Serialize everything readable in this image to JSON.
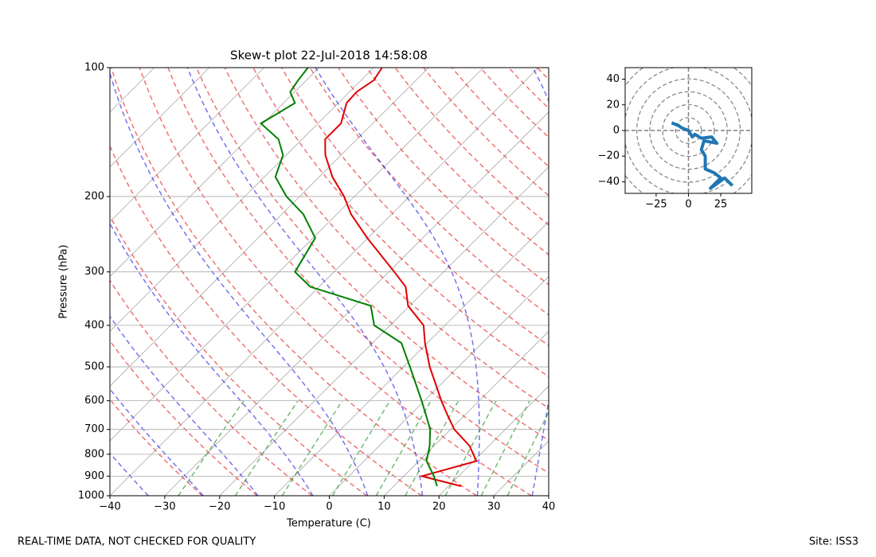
{
  "chart_data": [
    {
      "type": "skewt",
      "title": "Skew-t plot 22-Jul-2018 14:58:08",
      "xlabel": "Temperature (C)",
      "ylabel": "Pressure (hPa)",
      "xlim": [
        -40,
        40
      ],
      "ylim": [
        1000,
        100
      ],
      "log_y": true,
      "grid": true,
      "xticks": [
        {
          "value": -40,
          "label": "−40"
        },
        {
          "value": -30,
          "label": "−30"
        },
        {
          "value": -20,
          "label": "−20"
        },
        {
          "value": -10,
          "label": "−10"
        },
        0,
        10,
        20,
        30,
        40
      ],
      "yticks": [
        100,
        200,
        300,
        400,
        500,
        600,
        700,
        800,
        900,
        1000
      ],
      "y": [
        950,
        900,
        830,
        765,
        700,
        645,
        600,
        540,
        500,
        440,
        400,
        360,
        325,
        300,
        250,
        220,
        200,
        180,
        160,
        147,
        135,
        121,
        114,
        107,
        100
      ],
      "series": [
        {
          "color": "#e00000",
          "values": [
            22.3,
            13.3,
            20.5,
            16.5,
            10.7,
            6.6,
            3.1,
            -1.7,
            -5.2,
            -10.4,
            -13.9,
            -20.3,
            -24.2,
            -29.0,
            -40.1,
            -47.4,
            -51.9,
            -57.6,
            -62.9,
            -65.8,
            -65.8,
            -68.5,
            -68.7,
            -67.7,
            -68.5
          ]
        },
        {
          "color": "#008000",
          "values": [
            17.9,
            15.5,
            11.4,
            9.2,
            6.3,
            2.7,
            -0.5,
            -5.3,
            -8.8,
            -14.7,
            -22.9,
            -27.1,
            -41.6,
            -47.1,
            -49.6,
            -56.1,
            -62.4,
            -68.0,
            -70.6,
            -74.3,
            -80.4,
            -77.9,
            -80.8,
            -81.5,
            -82.0
          ]
        }
      ]
    },
    {
      "type": "line",
      "xlim": [
        -49,
        49
      ],
      "ylim": [
        -49,
        49
      ],
      "xticks": [
        {
          "value": -25,
          "label": "−25"
        },
        0,
        25
      ],
      "yticks": [
        {
          "value": -40,
          "label": "−40"
        },
        {
          "value": -20,
          "label": "−20"
        },
        0,
        20,
        40
      ],
      "color": "#1f77b4",
      "x": [
        -13,
        -8,
        -5,
        0,
        3,
        5,
        10,
        18,
        22,
        12,
        10,
        13,
        13,
        20,
        25,
        17,
        28,
        34
      ],
      "values": [
        6,
        4,
        2,
        0,
        -5,
        -3,
        -6,
        -5,
        -10,
        -8,
        -15,
        -20,
        -30,
        -33,
        -37,
        -45,
        -37,
        -43
      ]
    }
  ],
  "footer": {
    "left": "REAL-TIME DATA, NOT CHECKED FOR QUALITY",
    "right": "Site: ISS3"
  }
}
